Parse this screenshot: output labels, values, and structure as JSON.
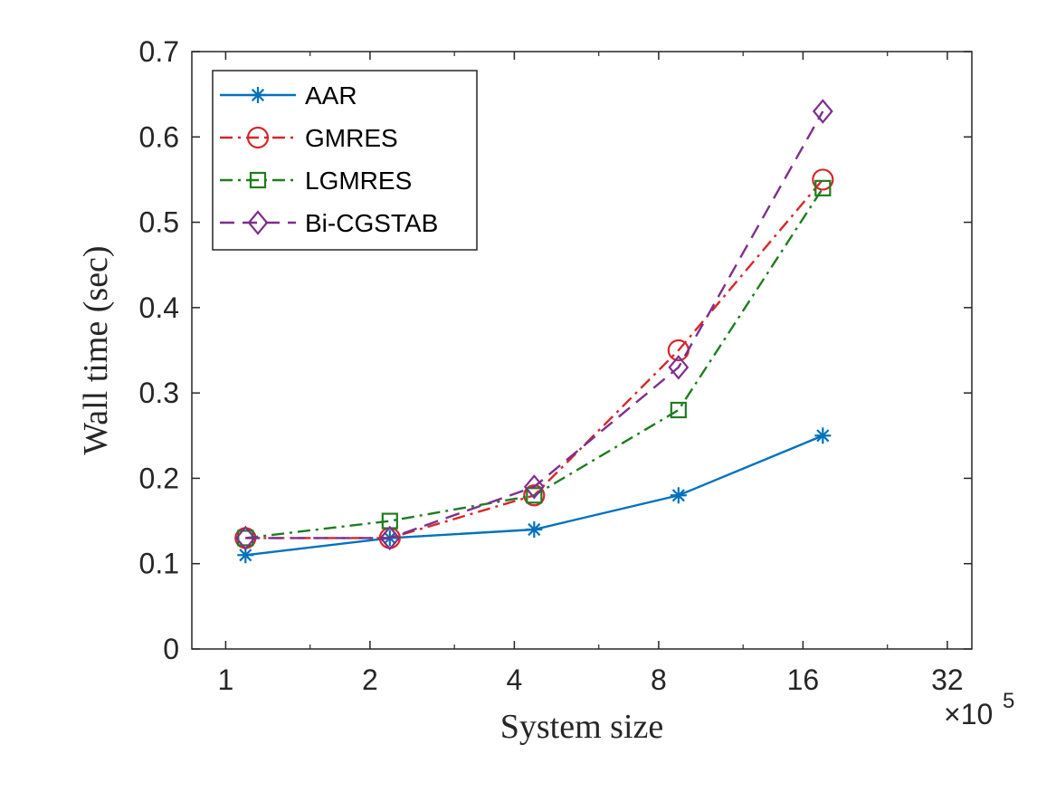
{
  "chart_data": {
    "type": "line",
    "xlabel": "System size",
    "ylabel": "Wall time (sec)",
    "x_scale": "log2",
    "x_multiplier_label": "×10",
    "x_multiplier_exponent": "5",
    "xlim": [
      0.85,
      36
    ],
    "ylim": [
      0,
      0.7
    ],
    "x_ticks": [
      1,
      2,
      4,
      8,
      16,
      32
    ],
    "x_tick_labels": [
      "1",
      "2",
      "4",
      "8",
      "16",
      "32"
    ],
    "y_ticks": [
      0,
      0.1,
      0.2,
      0.3,
      0.4,
      0.5,
      0.6,
      0.7
    ],
    "y_tick_labels": [
      "0",
      "0.1",
      "0.2",
      "0.3",
      "0.4",
      "0.5",
      "0.6",
      "0.7"
    ],
    "grid": false,
    "legend_position": "top-left",
    "x": [
      1.1,
      2.2,
      4.4,
      8.8,
      17.6
    ],
    "series": [
      {
        "name": "AAR",
        "color": "#0072BD",
        "dash": "solid",
        "marker": "asterisk",
        "values": [
          0.11,
          0.13,
          0.14,
          0.18,
          0.25
        ]
      },
      {
        "name": "GMRES",
        "color": "#D62728",
        "dash": "dashdot",
        "marker": "circle",
        "values": [
          0.13,
          0.13,
          0.18,
          0.35,
          0.55
        ]
      },
      {
        "name": "LGMRES",
        "color": "#1E7D1E",
        "dash": "dashdot",
        "marker": "square",
        "values": [
          0.13,
          0.15,
          0.18,
          0.28,
          0.54
        ]
      },
      {
        "name": "Bi-CGSTAB",
        "color": "#7E2F8E",
        "dash": "dashed",
        "marker": "diamond",
        "values": [
          0.13,
          0.13,
          0.19,
          0.33,
          0.63
        ]
      }
    ]
  }
}
